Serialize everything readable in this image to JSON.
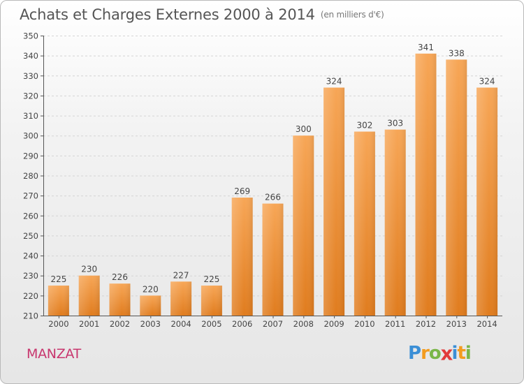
{
  "title": "Achats et Charges Externes 2000 à 2014",
  "subtitle": "(en milliers d'€)",
  "commune": "MANZAT",
  "logo": {
    "text": "Proxiti",
    "letters": [
      {
        "ch": "P",
        "color": "#3b8fd6"
      },
      {
        "ch": "r",
        "color": "#f39c1f"
      },
      {
        "ch": "o",
        "color": "#7ab648"
      },
      {
        "ch": "x",
        "color": "#e23a3a"
      },
      {
        "ch": "i",
        "color": "#3b8fd6"
      },
      {
        "ch": "t",
        "color": "#f39c1f"
      },
      {
        "ch": "i",
        "color": "#7ab648"
      }
    ]
  },
  "colors": {
    "bar_top": "#f7a656",
    "bar_bottom": "#e07c1e",
    "axis": "#555555",
    "grid": "#d4d4d4"
  },
  "chart_data": {
    "type": "bar",
    "categories": [
      "2000",
      "2001",
      "2002",
      "2003",
      "2004",
      "2005",
      "2006",
      "2007",
      "2008",
      "2009",
      "2010",
      "2011",
      "2012",
      "2013",
      "2014"
    ],
    "values": [
      225,
      230,
      226,
      220,
      227,
      225,
      269,
      266,
      300,
      324,
      302,
      303,
      341,
      338,
      324
    ],
    "ylim": [
      210,
      350
    ],
    "yticks": [
      210,
      220,
      230,
      240,
      250,
      260,
      270,
      280,
      290,
      300,
      310,
      320,
      330,
      340,
      350
    ],
    "grid": true,
    "data_labels": true
  }
}
